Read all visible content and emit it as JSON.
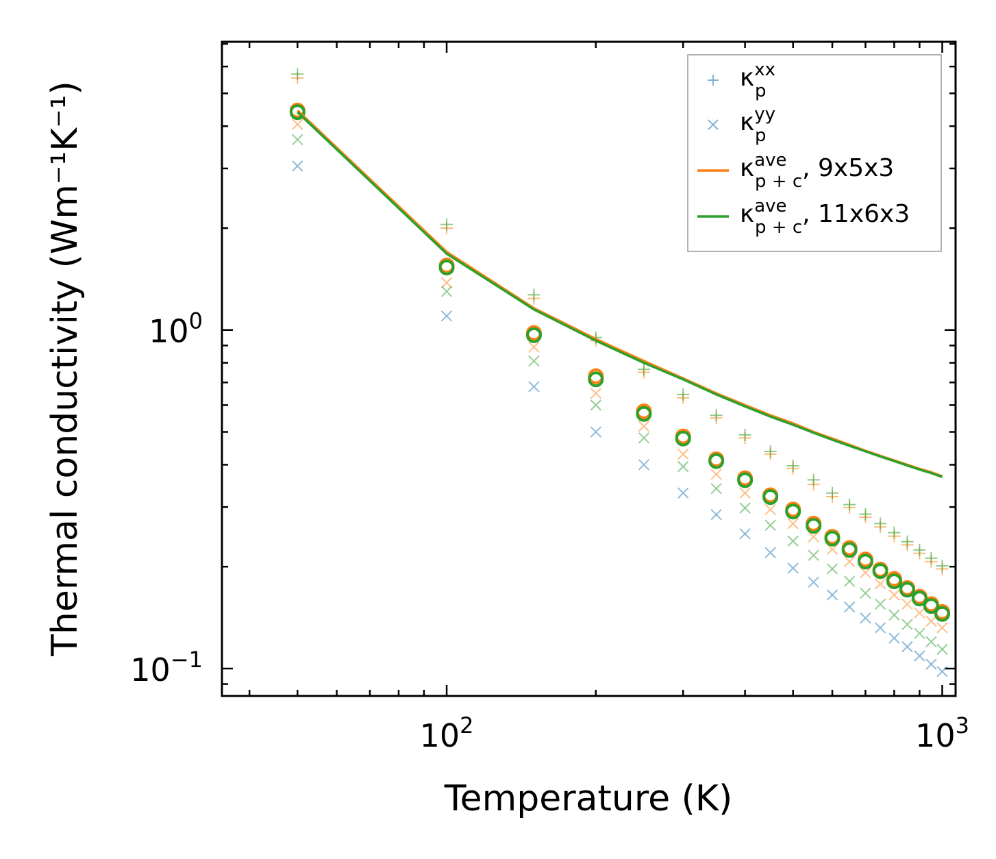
{
  "chart_data": {
    "type": "scatter",
    "title": "",
    "xlabel": "Temperature (K)",
    "ylabel": "Thermal conductivity (Wm⁻¹K⁻¹)",
    "xscale": "log",
    "yscale": "log",
    "xlim": [
      35.2,
      1064
    ],
    "ylim": [
      0.083,
      7.1
    ],
    "x_ticks": [
      {
        "value": 100,
        "base": "10",
        "exp": "2"
      },
      {
        "value": 1000,
        "base": "10",
        "exp": "3"
      }
    ],
    "y_ticks": [
      {
        "value": 1,
        "base": "10",
        "exp": "0"
      },
      {
        "value": 0.1,
        "base": "10",
        "exp": "−1"
      }
    ],
    "grid": false,
    "legend_position": "top-right",
    "legend": [
      {
        "text": "κ",
        "sub": "p",
        "sup": "xx",
        "tail": "",
        "marker": "plus",
        "color": "#1f77b4"
      },
      {
        "text": "κ",
        "sub": "p",
        "sup": "yy",
        "tail": "",
        "marker": "x",
        "color": "#1f77b4"
      },
      {
        "text": "κ",
        "sub": "p + c",
        "sup": "ave",
        "tail": ", 9x5x3",
        "marker": "line",
        "color": "#ff7f0e"
      },
      {
        "text": "κ",
        "sub": "p + c",
        "sup": "ave",
        "tail": ", 11x6x3",
        "marker": "line",
        "color": "#2ca02c"
      }
    ],
    "x": [
      50,
      100,
      150,
      200,
      250,
      300,
      350,
      400,
      450,
      500,
      550,
      600,
      650,
      700,
      750,
      800,
      850,
      900,
      950,
      1000
    ],
    "series": [
      {
        "name": "9x5x3 κ_p^xx",
        "marker": "plus",
        "color": "#ff7f0e",
        "values": [
          5.55,
          2.0,
          1.24,
          0.93,
          0.75,
          0.63,
          0.55,
          0.48,
          0.43,
          0.39,
          0.35,
          0.322,
          0.299,
          0.28,
          0.262,
          0.246,
          0.232,
          0.219,
          0.207,
          0.197
        ]
      },
      {
        "name": "11x6x3 κ_p^xx",
        "marker": "plus",
        "color": "#2ca02c",
        "values": [
          5.7,
          2.05,
          1.27,
          0.95,
          0.765,
          0.645,
          0.56,
          0.49,
          0.438,
          0.397,
          0.361,
          0.33,
          0.305,
          0.286,
          0.268,
          0.252,
          0.237,
          0.224,
          0.212,
          0.201
        ]
      },
      {
        "name": "9x5x3 κ_p^yy",
        "marker": "x",
        "color": "#1f77b4",
        "values": [
          3.05,
          1.1,
          0.68,
          0.5,
          0.4,
          0.33,
          0.285,
          0.25,
          0.22,
          0.198,
          0.18,
          0.165,
          0.152,
          0.141,
          0.132,
          0.123,
          0.116,
          0.109,
          0.103,
          0.098
        ]
      },
      {
        "name": "9x5x3 κ_p^yy (orange)",
        "marker": "x",
        "color": "#ff7f0e",
        "values": [
          4.05,
          1.38,
          0.89,
          0.65,
          0.52,
          0.43,
          0.375,
          0.33,
          0.295,
          0.268,
          0.245,
          0.225,
          0.207,
          0.192,
          0.178,
          0.165,
          0.155,
          0.146,
          0.138,
          0.132
        ]
      },
      {
        "name": "11x6x3 κ_p^yy",
        "marker": "x",
        "color": "#2ca02c",
        "values": [
          3.65,
          1.3,
          0.81,
          0.6,
          0.48,
          0.395,
          0.34,
          0.298,
          0.265,
          0.238,
          0.216,
          0.197,
          0.181,
          0.167,
          0.155,
          0.144,
          0.135,
          0.127,
          0.12,
          0.114
        ]
      },
      {
        "name": "9x5x3 κ_p^ave",
        "marker": "circle",
        "color": "#ff7f0e",
        "values": [
          4.45,
          1.55,
          0.98,
          0.73,
          0.575,
          0.485,
          0.415,
          0.365,
          0.325,
          0.295,
          0.268,
          0.245,
          0.227,
          0.21,
          0.196,
          0.184,
          0.173,
          0.163,
          0.155,
          0.147
        ]
      },
      {
        "name": "11x6x3 κ_p^ave",
        "marker": "circle",
        "color": "#2ca02c",
        "values": [
          4.4,
          1.53,
          0.965,
          0.715,
          0.565,
          0.478,
          0.41,
          0.36,
          0.321,
          0.291,
          0.264,
          0.242,
          0.224,
          0.207,
          0.194,
          0.181,
          0.171,
          0.161,
          0.153,
          0.145
        ]
      },
      {
        "name": "κ_p+c^ave, 9x5x3",
        "marker": "line",
        "color": "#ff7f0e",
        "values": [
          4.45,
          1.7,
          1.16,
          0.94,
          0.81,
          0.72,
          0.65,
          0.6,
          0.56,
          0.53,
          0.5,
          0.478,
          0.458,
          0.44,
          0.425,
          0.412,
          0.4,
          0.389,
          0.38,
          0.37
        ]
      },
      {
        "name": "κ_p+c^ave, 11x6x3",
        "marker": "line",
        "color": "#2ca02c",
        "values": [
          4.4,
          1.68,
          1.15,
          0.93,
          0.8,
          0.715,
          0.645,
          0.595,
          0.555,
          0.525,
          0.497,
          0.474,
          0.455,
          0.438,
          0.423,
          0.41,
          0.398,
          0.387,
          0.378,
          0.368
        ]
      }
    ]
  }
}
